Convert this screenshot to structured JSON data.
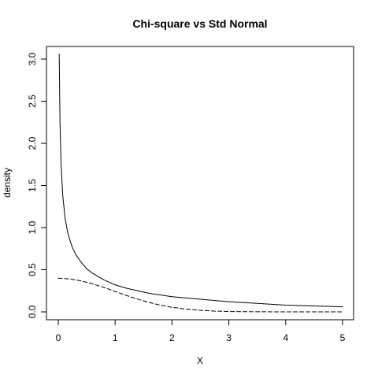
{
  "chart_data": {
    "type": "line",
    "title": "Chi-square vs Std Normal",
    "xlabel": "X",
    "ylabel": "density",
    "xlim": [
      0,
      5
    ],
    "ylim": [
      0,
      3.1
    ],
    "grid": false,
    "legend": "none",
    "x_ticks": [
      0,
      1,
      2,
      3,
      4,
      5
    ],
    "x_tick_labels": [
      "0",
      "1",
      "2",
      "3",
      "4",
      "5"
    ],
    "y_ticks": [
      0,
      0.5,
      1.0,
      1.5,
      2.0,
      2.5,
      3.0
    ],
    "y_tick_labels": [
      "0.0",
      "0.5",
      "1.0",
      "1.5",
      "2.0",
      "2.5",
      "3.0"
    ],
    "series": [
      {
        "line_style": "solid",
        "color": "#000000",
        "x": [
          0.016,
          0.03,
          0.05,
          0.08,
          0.12,
          0.16,
          0.2,
          0.25,
          0.3,
          0.4,
          0.5,
          0.6,
          0.7,
          0.8,
          0.9,
          1.0,
          1.2,
          1.4,
          1.6,
          1.8,
          2.0,
          2.5,
          3.0,
          3.5,
          4.0,
          4.5,
          5.0
        ],
        "y": [
          3.06,
          2.26,
          1.74,
          1.37,
          1.11,
          0.96,
          0.86,
          0.76,
          0.69,
          0.59,
          0.51,
          0.46,
          0.42,
          0.38,
          0.35,
          0.32,
          0.28,
          0.25,
          0.22,
          0.2,
          0.18,
          0.15,
          0.12,
          0.1,
          0.08,
          0.07,
          0.06
        ]
      },
      {
        "line_style": "dashed",
        "color": "#000000",
        "x": [
          0.0,
          0.2,
          0.4,
          0.6,
          0.8,
          1.0,
          1.2,
          1.4,
          1.6,
          1.8,
          2.0,
          2.25,
          2.5,
          2.75,
          3.0,
          3.5,
          4.0,
          4.5,
          5.0
        ],
        "y": [
          0.399,
          0.391,
          0.368,
          0.333,
          0.29,
          0.242,
          0.194,
          0.15,
          0.111,
          0.079,
          0.054,
          0.032,
          0.018,
          0.009,
          0.004,
          0.001,
          0.0001,
          0.0,
          0.0
        ]
      }
    ]
  }
}
